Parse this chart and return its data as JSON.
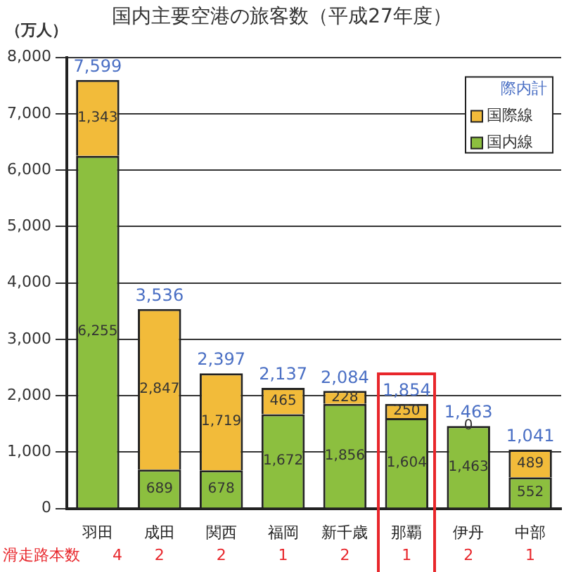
{
  "chart_data": {
    "type": "bar",
    "title": "国内主要空港の旅客数（平成27年度）",
    "ylabel": "（万人）",
    "legend_title": "際内計",
    "categories": [
      "羽田",
      "成田",
      "関西",
      "福岡",
      "新千歳",
      "那覇",
      "伊丹",
      "中部"
    ],
    "series": [
      {
        "name": "国内線",
        "color": "#8cbf3f",
        "values": [
          6255,
          689,
          678,
          1672,
          1856,
          1604,
          1463,
          552
        ],
        "value_labels": [
          "6,255",
          "689",
          "678",
          "1,672",
          "1,856",
          "1,604",
          "1,463",
          "552"
        ]
      },
      {
        "name": "国際線",
        "color": "#f2bb3a",
        "values": [
          1343,
          2847,
          1719,
          465,
          228,
          250,
          0,
          489
        ],
        "value_labels": [
          "1,343",
          "2,847",
          "1,719",
          "465",
          "228",
          "250",
          "0",
          "489"
        ]
      }
    ],
    "stacked": true,
    "totals": [
      "7,599",
      "3,536",
      "2,397",
      "2,137",
      "2,084",
      "1,854",
      "1,463",
      "1,041"
    ],
    "ylim": [
      0,
      8000
    ],
    "yticks": [
      {
        "value": 0,
        "label": "0"
      },
      {
        "value": 1000,
        "label": "1,000"
      },
      {
        "value": 2000,
        "label": "2,000"
      },
      {
        "value": 3000,
        "label": "3,000"
      },
      {
        "value": 4000,
        "label": "4,000"
      },
      {
        "value": 5000,
        "label": "5,000"
      },
      {
        "value": 6000,
        "label": "6,000"
      },
      {
        "value": 7000,
        "label": "7,000"
      },
      {
        "value": 8000,
        "label": "8,000"
      }
    ],
    "grid": "y",
    "legend": "top right",
    "annotations": [
      "滑走路本数",
      "4",
      "2",
      "2",
      "1",
      "2",
      "1",
      "2",
      "1"
    ]
  }
}
